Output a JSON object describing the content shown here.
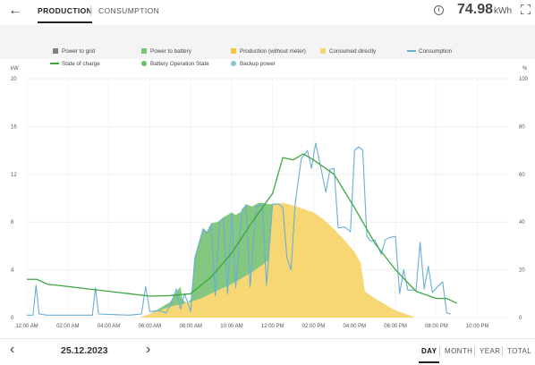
{
  "header": {
    "tabs": [
      {
        "label": "PRODUCTION",
        "active": true
      },
      {
        "label": "CONSUMPTION",
        "active": false
      }
    ],
    "total_value": "74.98",
    "total_unit": "kWh",
    "icons": [
      "back-arrow-icon",
      "info-icon",
      "fullscreen-icon"
    ]
  },
  "legend": [
    {
      "label": "Power to grid",
      "color": "#808080",
      "shape": "square"
    },
    {
      "label": "Power to battery",
      "color": "#7cc47a",
      "shape": "square"
    },
    {
      "label": "Production (without meter)",
      "color": "#f5c542",
      "shape": "square"
    },
    {
      "label": "Consumed directly",
      "color": "#f7d774",
      "shape": "square"
    },
    {
      "label": "Consumption",
      "color": "#6aaed6",
      "shape": "line"
    },
    {
      "label": "State of charge",
      "color": "#3ea83e",
      "shape": "line"
    },
    {
      "label": "Battery Operation State",
      "color": "#6bbf6b",
      "shape": "dot"
    },
    {
      "label": "Backup power",
      "color": "#8ec3dc",
      "shape": "dot"
    }
  ],
  "chart_data": {
    "type": "area",
    "left_unit": "kW",
    "right_unit": "%",
    "yticks_left": [
      "0",
      "4",
      "8",
      "12",
      "16",
      "20"
    ],
    "yticks_right": [
      "0",
      "20",
      "40",
      "60",
      "80",
      "100"
    ],
    "ylim_left": [
      0,
      20
    ],
    "ylim_right": [
      0,
      100
    ],
    "xlim_hours": [
      0,
      23.5
    ],
    "xtick_hours": [
      0,
      2,
      4,
      6,
      8,
      10,
      12,
      14,
      16,
      18,
      20,
      22
    ],
    "xticks": [
      "12:00 AM",
      "02:00 AM",
      "04:00 AM",
      "06:00 AM",
      "08:00 AM",
      "10:00 AM",
      "12:00 PM",
      "02:00 PM",
      "04:00 PM",
      "06:00 PM",
      "08:00 PM",
      "10:00 PM"
    ],
    "grid": true,
    "series": [
      {
        "name": "Consumed directly",
        "color": "#f7d774",
        "points": [
          [
            5.5,
            0
          ],
          [
            6,
            0.3
          ],
          [
            6.5,
            0.6
          ],
          [
            7,
            0.9
          ],
          [
            7.5,
            1.1
          ],
          [
            8,
            1.3
          ],
          [
            8.5,
            1.6
          ],
          [
            9,
            2
          ],
          [
            9.5,
            2.4
          ],
          [
            10,
            2.8
          ],
          [
            10.5,
            3.3
          ],
          [
            11,
            3.8
          ],
          [
            11.5,
            4.4
          ],
          [
            11.8,
            4.8
          ],
          [
            12,
            9.5
          ],
          [
            12.5,
            9.6
          ],
          [
            13,
            9.4
          ],
          [
            13.5,
            9.1
          ],
          [
            14,
            8.8
          ],
          [
            14.5,
            8.2
          ],
          [
            15,
            7.4
          ],
          [
            15.5,
            6.5
          ],
          [
            16,
            5.5
          ],
          [
            16.3,
            4.6
          ],
          [
            16.5,
            2.2
          ],
          [
            17,
            1.6
          ],
          [
            17.5,
            1.1
          ],
          [
            18,
            0.6
          ],
          [
            18.5,
            0.3
          ],
          [
            19,
            0
          ]
        ]
      },
      {
        "name": "Power to battery",
        "color": "#7cc47a",
        "points": [
          [
            6,
            0.3
          ],
          [
            6.5,
            0.8
          ],
          [
            7,
            1.3
          ],
          [
            7.2,
            1.9
          ],
          [
            7.5,
            2.6
          ],
          [
            7.6,
            1.5
          ],
          [
            7.8,
            1.2
          ],
          [
            8,
            1.5
          ],
          [
            8.2,
            5.1
          ],
          [
            8.4,
            6.3
          ],
          [
            8.6,
            7.5
          ],
          [
            8.8,
            7.2
          ],
          [
            9,
            7.9
          ],
          [
            9.3,
            8
          ],
          [
            9.6,
            8.4
          ],
          [
            10,
            8.8
          ],
          [
            10.2,
            8.6
          ],
          [
            10.5,
            8.9
          ],
          [
            10.7,
            9.5
          ],
          [
            11,
            9.3
          ],
          [
            11.3,
            9.6
          ],
          [
            11.5,
            9.6
          ],
          [
            11.8,
            9.5
          ],
          [
            12,
            9.5
          ]
        ]
      }
    ],
    "lines": [
      {
        "name": "Consumption",
        "color": "#6aaed6",
        "points": [
          [
            0,
            0.2
          ],
          [
            0.3,
            0.2
          ],
          [
            0.45,
            2.7
          ],
          [
            0.6,
            0.3
          ],
          [
            1,
            0.2
          ],
          [
            3.2,
            0.2
          ],
          [
            3.35,
            2.5
          ],
          [
            3.5,
            0.3
          ],
          [
            5,
            0.2
          ],
          [
            5.6,
            0.3
          ],
          [
            5.8,
            2.6
          ],
          [
            6,
            0.5
          ],
          [
            6.4,
            0.6
          ],
          [
            6.8,
            0.4
          ],
          [
            7,
            1
          ],
          [
            7.3,
            2.4
          ],
          [
            7.5,
            0.7
          ],
          [
            7.7,
            2
          ],
          [
            8,
            0.5
          ],
          [
            8.2,
            5
          ],
          [
            8.4,
            6.2
          ],
          [
            8.6,
            7.4
          ],
          [
            8.8,
            7.1
          ],
          [
            9,
            7.8
          ],
          [
            9.2,
            1.8
          ],
          [
            9.4,
            7.9
          ],
          [
            9.6,
            8.3
          ],
          [
            9.8,
            2
          ],
          [
            10,
            8.7
          ],
          [
            10.2,
            2.5
          ],
          [
            10.5,
            9
          ],
          [
            10.7,
            9.4
          ],
          [
            10.9,
            2.6
          ],
          [
            11.2,
            9.3
          ],
          [
            11.5,
            9.5
          ],
          [
            11.7,
            2.7
          ],
          [
            12,
            9.5
          ],
          [
            12.3,
            9.5
          ],
          [
            12.5,
            9.2
          ],
          [
            12.7,
            5
          ],
          [
            12.9,
            4
          ],
          [
            13.1,
            9.5
          ],
          [
            13.4,
            13.3
          ],
          [
            13.7,
            14
          ],
          [
            13.9,
            12.5
          ],
          [
            14.1,
            14.6
          ],
          [
            14.3,
            13
          ],
          [
            14.6,
            10.5
          ],
          [
            14.8,
            12.4
          ],
          [
            15,
            12.5
          ],
          [
            15.2,
            7.5
          ],
          [
            15.5,
            7.6
          ],
          [
            15.8,
            7.2
          ],
          [
            16,
            14
          ],
          [
            16.2,
            14.3
          ],
          [
            16.4,
            14
          ],
          [
            16.6,
            6.8
          ],
          [
            16.8,
            6.4
          ],
          [
            17,
            6.5
          ],
          [
            17.3,
            5.3
          ],
          [
            17.5,
            6.5
          ],
          [
            17.7,
            6.7
          ],
          [
            18,
            6.8
          ],
          [
            18.2,
            2
          ],
          [
            18.4,
            4
          ],
          [
            18.6,
            2.3
          ],
          [
            19,
            2.3
          ],
          [
            19.2,
            6.3
          ],
          [
            19.4,
            2.4
          ],
          [
            19.6,
            4.3
          ],
          [
            19.8,
            2.1
          ],
          [
            20,
            2.5
          ],
          [
            20.3,
            3
          ],
          [
            20.5,
            0.4
          ],
          [
            20.7,
            0.3
          ]
        ]
      },
      {
        "name": "State of charge",
        "axis": "right",
        "color": "#3ea83e",
        "points": [
          [
            0,
            16
          ],
          [
            0.5,
            16
          ],
          [
            1,
            14
          ],
          [
            2,
            13
          ],
          [
            3,
            12
          ],
          [
            4,
            11
          ],
          [
            5,
            10
          ],
          [
            6,
            9
          ],
          [
            7,
            9.2
          ],
          [
            8,
            10
          ],
          [
            9,
            17
          ],
          [
            10,
            27
          ],
          [
            11,
            40
          ],
          [
            12,
            52
          ],
          [
            12.5,
            67
          ],
          [
            13,
            66
          ],
          [
            13.5,
            68.5
          ],
          [
            14,
            66
          ],
          [
            15,
            60
          ],
          [
            16,
            46
          ],
          [
            17,
            31
          ],
          [
            18,
            20
          ],
          [
            19,
            11
          ],
          [
            20,
            8
          ],
          [
            20.5,
            8
          ],
          [
            21,
            6
          ]
        ]
      }
    ]
  },
  "footer": {
    "date": "25.12.2023",
    "periods": [
      {
        "label": "DAY",
        "active": true
      },
      {
        "label": "MONTH",
        "active": false
      },
      {
        "label": "YEAR",
        "active": false
      },
      {
        "label": "TOTAL",
        "active": false
      }
    ]
  }
}
